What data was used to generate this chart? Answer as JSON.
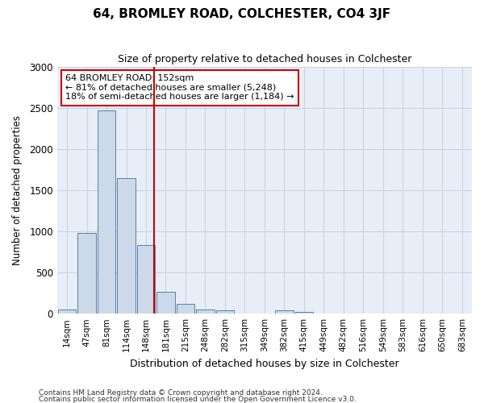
{
  "title": "64, BROMLEY ROAD, COLCHESTER, CO4 3JF",
  "subtitle": "Size of property relative to detached houses in Colchester",
  "xlabel": "Distribution of detached houses by size in Colchester",
  "ylabel": "Number of detached properties",
  "categories": [
    "14sqm",
    "47sqm",
    "81sqm",
    "114sqm",
    "148sqm",
    "181sqm",
    "215sqm",
    "248sqm",
    "282sqm",
    "315sqm",
    "349sqm",
    "382sqm",
    "415sqm",
    "449sqm",
    "482sqm",
    "516sqm",
    "549sqm",
    "583sqm",
    "616sqm",
    "650sqm",
    "683sqm"
  ],
  "values": [
    50,
    980,
    2470,
    1650,
    830,
    270,
    120,
    50,
    45,
    0,
    0,
    45,
    25,
    0,
    0,
    0,
    0,
    0,
    0,
    0,
    0
  ],
  "bar_color": "#ccd9e8",
  "bar_edge_color": "#5580aa",
  "vline_color": "#cc0000",
  "vline_pos": 4.42,
  "annotation_text": "64 BROMLEY ROAD: 152sqm\n← 81% of detached houses are smaller (5,248)\n18% of semi-detached houses are larger (1,184) →",
  "annotation_box_color": "#ffffff",
  "annotation_box_edge": "#cc0000",
  "ylim": [
    0,
    3000
  ],
  "yticks": [
    0,
    500,
    1000,
    1500,
    2000,
    2500,
    3000
  ],
  "grid_color": "#c8d4e4",
  "plot_bg_color": "#e8eef8",
  "fig_bg_color": "#ffffff",
  "footer1": "Contains HM Land Registry data © Crown copyright and database right 2024.",
  "footer2": "Contains public sector information licensed under the Open Government Licence v3.0."
}
